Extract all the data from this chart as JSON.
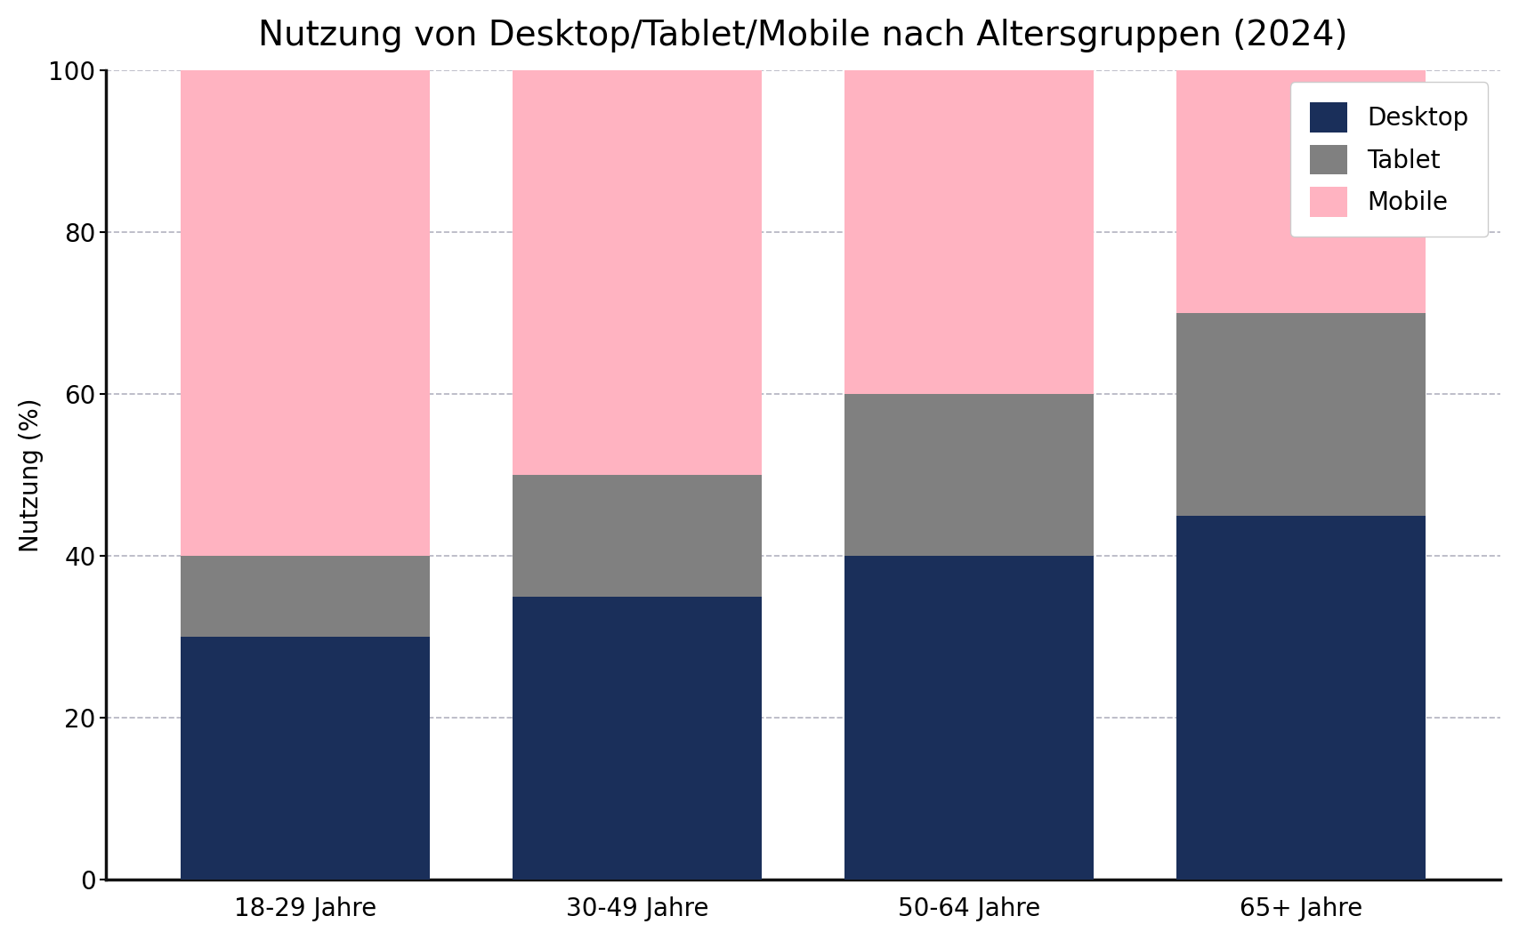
{
  "title": "Nutzung von Desktop/Tablet/Mobile nach Altersgruppen (2024)",
  "categories": [
    "18-29 Jahre",
    "30-49 Jahre",
    "50-64 Jahre",
    "65+ Jahre"
  ],
  "desktop": [
    30,
    35,
    40,
    45
  ],
  "tablet": [
    10,
    15,
    20,
    25
  ],
  "mobile": [
    60,
    50,
    40,
    30
  ],
  "color_desktop": "#1a2f5a",
  "color_tablet": "#808080",
  "color_mobile": "#ffb3c1",
  "ylabel": "Nutzung (%)",
  "ylim": [
    0,
    100
  ],
  "legend_labels": [
    "Desktop",
    "Tablet",
    "Mobile"
  ],
  "title_fontsize": 28,
  "axis_label_fontsize": 20,
  "tick_fontsize": 20,
  "legend_fontsize": 20,
  "bar_width": 0.75,
  "background_color": "#ffffff",
  "grid_color": "#a0a0b0",
  "grid_style": "--",
  "grid_alpha": 0.8,
  "left_spine_color": "#111111",
  "bottom_spine_color": "#111111"
}
